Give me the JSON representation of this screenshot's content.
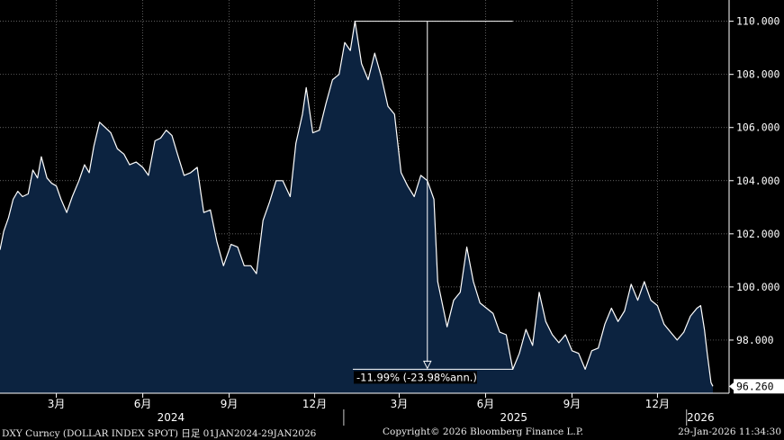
{
  "chart_data": {
    "type": "area",
    "ticker": "DXY Curncy",
    "ylim": [
      96.0,
      110.8
    ],
    "y_ticks": [
      98.0,
      100.0,
      102.0,
      104.0,
      106.0,
      108.0,
      110.0
    ],
    "y_tick_labels": [
      "98.000",
      "100.000",
      "102.000",
      "104.000",
      "106.000",
      "108.000",
      "110.000"
    ],
    "x_range": [
      "2024-01-01",
      "2026-01-29"
    ],
    "x_ticks": [
      {
        "date": "2024-03-01",
        "label": "3月"
      },
      {
        "date": "2024-06-01",
        "label": "6月"
      },
      {
        "date": "2024-09-01",
        "label": "9月"
      },
      {
        "date": "2024-12-01",
        "label": "12月"
      },
      {
        "date": "2025-03-01",
        "label": "3月"
      },
      {
        "date": "2025-06-01",
        "label": "6月"
      },
      {
        "date": "2025-09-01",
        "label": "9月"
      },
      {
        "date": "2025-12-01",
        "label": "12月"
      }
    ],
    "year_labels": [
      {
        "date": "2024-07-01",
        "label": "2024"
      },
      {
        "date": "2025-07-01",
        "label": "2025"
      },
      {
        "date": "2026-01-16",
        "label": "2026"
      }
    ],
    "year_separators": [
      "2025-01-01",
      "2026-01-01"
    ],
    "last_value": 96.26,
    "last_value_label": "96.260",
    "annotation": {
      "text": "-11.99% (-23.98%ann.)",
      "high": {
        "date": "2025-01-13",
        "value": 110.0
      },
      "low": {
        "date": "2025-06-30",
        "value": 96.9
      },
      "measure_date": "2025-03-31"
    },
    "grid": true,
    "colors": {
      "line": "#ffffff",
      "fill": "#0c2340",
      "background": "#000000",
      "grid": "#808080"
    },
    "series": [
      {
        "values": [
          [
            "2024-01-01",
            101.4
          ],
          [
            "2024-01-05",
            102.1
          ],
          [
            "2024-01-10",
            102.6
          ],
          [
            "2024-01-15",
            103.3
          ],
          [
            "2024-01-20",
            103.6
          ],
          [
            "2024-01-25",
            103.4
          ],
          [
            "2024-01-31",
            103.5
          ],
          [
            "2024-02-05",
            104.4
          ],
          [
            "2024-02-10",
            104.1
          ],
          [
            "2024-02-14",
            104.9
          ],
          [
            "2024-02-20",
            104.1
          ],
          [
            "2024-02-25",
            103.9
          ],
          [
            "2024-03-01",
            103.8
          ],
          [
            "2024-03-06",
            103.3
          ],
          [
            "2024-03-12",
            102.8
          ],
          [
            "2024-03-18",
            103.4
          ],
          [
            "2024-03-25",
            104.0
          ],
          [
            "2024-03-31",
            104.6
          ],
          [
            "2024-04-05",
            104.3
          ],
          [
            "2024-04-10",
            105.3
          ],
          [
            "2024-04-16",
            106.2
          ],
          [
            "2024-04-22",
            106.0
          ],
          [
            "2024-04-28",
            105.8
          ],
          [
            "2024-05-05",
            105.2
          ],
          [
            "2024-05-12",
            105.0
          ],
          [
            "2024-05-18",
            104.6
          ],
          [
            "2024-05-25",
            104.7
          ],
          [
            "2024-06-01",
            104.5
          ],
          [
            "2024-06-07",
            104.2
          ],
          [
            "2024-06-14",
            105.5
          ],
          [
            "2024-06-20",
            105.6
          ],
          [
            "2024-06-26",
            105.9
          ],
          [
            "2024-07-02",
            105.7
          ],
          [
            "2024-07-08",
            105.0
          ],
          [
            "2024-07-15",
            104.2
          ],
          [
            "2024-07-22",
            104.3
          ],
          [
            "2024-07-29",
            104.5
          ],
          [
            "2024-08-02",
            103.5
          ],
          [
            "2024-08-05",
            102.8
          ],
          [
            "2024-08-12",
            102.9
          ],
          [
            "2024-08-19",
            101.7
          ],
          [
            "2024-08-26",
            100.8
          ],
          [
            "2024-09-03",
            101.6
          ],
          [
            "2024-09-10",
            101.5
          ],
          [
            "2024-09-17",
            100.8
          ],
          [
            "2024-09-24",
            100.8
          ],
          [
            "2024-09-30",
            100.5
          ],
          [
            "2024-10-07",
            102.5
          ],
          [
            "2024-10-14",
            103.2
          ],
          [
            "2024-10-21",
            104.0
          ],
          [
            "2024-10-28",
            104.0
          ],
          [
            "2024-11-05",
            103.4
          ],
          [
            "2024-11-11",
            105.4
          ],
          [
            "2024-11-18",
            106.5
          ],
          [
            "2024-11-22",
            107.5
          ],
          [
            "2024-11-29",
            105.8
          ],
          [
            "2024-12-06",
            105.9
          ],
          [
            "2024-12-13",
            106.9
          ],
          [
            "2024-12-20",
            107.8
          ],
          [
            "2024-12-27",
            108.0
          ],
          [
            "2025-01-02",
            109.2
          ],
          [
            "2025-01-08",
            108.9
          ],
          [
            "2025-01-13",
            110.0
          ],
          [
            "2025-01-20",
            108.4
          ],
          [
            "2025-01-27",
            107.8
          ],
          [
            "2025-02-03",
            108.8
          ],
          [
            "2025-02-10",
            107.9
          ],
          [
            "2025-02-17",
            106.8
          ],
          [
            "2025-02-24",
            106.5
          ],
          [
            "2025-03-03",
            104.3
          ],
          [
            "2025-03-10",
            103.8
          ],
          [
            "2025-03-17",
            103.4
          ],
          [
            "2025-03-24",
            104.2
          ],
          [
            "2025-03-31",
            104.0
          ],
          [
            "2025-04-07",
            103.3
          ],
          [
            "2025-04-11",
            100.2
          ],
          [
            "2025-04-21",
            98.5
          ],
          [
            "2025-04-28",
            99.5
          ],
          [
            "2025-05-05",
            99.8
          ],
          [
            "2025-05-12",
            101.5
          ],
          [
            "2025-05-19",
            100.2
          ],
          [
            "2025-05-26",
            99.4
          ],
          [
            "2025-06-02",
            99.2
          ],
          [
            "2025-06-09",
            99.0
          ],
          [
            "2025-06-16",
            98.3
          ],
          [
            "2025-06-23",
            98.2
          ],
          [
            "2025-06-30",
            96.9
          ],
          [
            "2025-07-07",
            97.5
          ],
          [
            "2025-07-14",
            98.4
          ],
          [
            "2025-07-21",
            97.8
          ],
          [
            "2025-07-28",
            99.8
          ],
          [
            "2025-08-04",
            98.7
          ],
          [
            "2025-08-11",
            98.2
          ],
          [
            "2025-08-18",
            97.9
          ],
          [
            "2025-08-25",
            98.2
          ],
          [
            "2025-09-01",
            97.6
          ],
          [
            "2025-09-08",
            97.5
          ],
          [
            "2025-09-15",
            96.9
          ],
          [
            "2025-09-22",
            97.6
          ],
          [
            "2025-09-29",
            97.7
          ],
          [
            "2025-10-06",
            98.6
          ],
          [
            "2025-10-13",
            99.2
          ],
          [
            "2025-10-20",
            98.7
          ],
          [
            "2025-10-27",
            99.1
          ],
          [
            "2025-11-03",
            100.1
          ],
          [
            "2025-11-10",
            99.5
          ],
          [
            "2025-11-17",
            100.2
          ],
          [
            "2025-11-24",
            99.5
          ],
          [
            "2025-12-01",
            99.3
          ],
          [
            "2025-12-08",
            98.6
          ],
          [
            "2025-12-15",
            98.3
          ],
          [
            "2025-12-22",
            98.0
          ],
          [
            "2025-12-29",
            98.3
          ],
          [
            "2026-01-05",
            98.9
          ],
          [
            "2026-01-12",
            99.2
          ],
          [
            "2026-01-16",
            99.3
          ],
          [
            "2026-01-20",
            98.4
          ],
          [
            "2026-01-23",
            97.5
          ],
          [
            "2026-01-27",
            96.4
          ],
          [
            "2026-01-29",
            96.26
          ]
        ]
      }
    ]
  },
  "footer": {
    "left": "DXY Curncy (DOLLAR INDEX SPOT) 日足 01JAN2024-29JAN2026",
    "center": "Copyright© 2026 Bloomberg Finance L.P.",
    "right": "29-Jan-2026 11:34:30"
  }
}
